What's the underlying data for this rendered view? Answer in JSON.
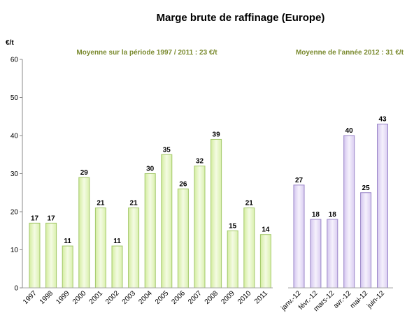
{
  "chart_data": {
    "type": "bar",
    "title": "Marge brute de raffinage (Europe)",
    "ylabel": "€/t",
    "ylim": [
      0,
      60
    ],
    "yticks": [
      0,
      10,
      20,
      30,
      40,
      50,
      60
    ],
    "grid": false,
    "annotations": [
      "Moyenne sur la période  1997 / 2011 :  23 €/t",
      "Moyenne de l'année 2012 : 31 €/t"
    ],
    "series": [
      {
        "color": "#e9f7c9",
        "categories": [
          "1997",
          "1998",
          "1999",
          "2000",
          "2001",
          "2002",
          "2003",
          "2004",
          "2005",
          "2006",
          "2007",
          "2008",
          "2009",
          "2010",
          "2011"
        ],
        "values": [
          17,
          17,
          11,
          29,
          21,
          11,
          21,
          30,
          35,
          26,
          32,
          39,
          15,
          21,
          14
        ],
        "labels": [
          "17",
          "17",
          "11",
          "29",
          "21",
          "11",
          "21",
          "30",
          "35",
          "26",
          "32",
          "39",
          "15",
          "21",
          "14"
        ]
      },
      {
        "color": "#ebe4f7",
        "categories": [
          "janv.-12",
          "févr.-12",
          "mars-12",
          "avr.-12",
          "mai-12",
          "juin-12"
        ],
        "values": [
          27,
          18,
          18,
          40,
          25,
          43
        ],
        "labels": [
          "27",
          "18",
          "18",
          "40",
          "25",
          "43"
        ]
      }
    ]
  }
}
